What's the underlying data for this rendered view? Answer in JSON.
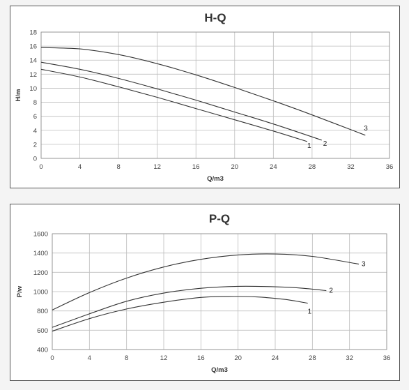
{
  "chart_data": [
    {
      "type": "line",
      "title": "H-Q",
      "xlabel": "Q/m3",
      "ylabel": "H/m",
      "xlim": [
        0,
        36
      ],
      "ylim": [
        0,
        18
      ],
      "xticks": [
        0,
        4,
        8,
        12,
        16,
        20,
        24,
        28,
        32,
        36
      ],
      "yticks": [
        0,
        2,
        4,
        6,
        8,
        10,
        12,
        14,
        16,
        18
      ],
      "grid": true,
      "series": [
        {
          "name": "1",
          "x": [
            0,
            4,
            8,
            12,
            16,
            20,
            24,
            27.5
          ],
          "y": [
            12.7,
            11.6,
            10.2,
            8.7,
            7.1,
            5.5,
            3.9,
            2.4
          ]
        },
        {
          "name": "2",
          "x": [
            0,
            4,
            8,
            12,
            16,
            20,
            24,
            29
          ],
          "y": [
            13.7,
            12.7,
            11.4,
            9.9,
            8.3,
            6.6,
            4.9,
            2.6
          ]
        },
        {
          "name": "3",
          "x": [
            0,
            4,
            8,
            12,
            16,
            20,
            24,
            28,
            33.5
          ],
          "y": [
            15.8,
            15.6,
            14.8,
            13.5,
            11.9,
            10.1,
            8.2,
            6.2,
            3.3
          ]
        }
      ]
    },
    {
      "type": "line",
      "title": "P-Q",
      "xlabel": "Q/m3",
      "ylabel": "P/w",
      "xlim": [
        0,
        36
      ],
      "ylim": [
        400,
        1600
      ],
      "xticks": [
        0,
        4,
        8,
        12,
        16,
        20,
        24,
        28,
        32,
        36
      ],
      "yticks": [
        400,
        600,
        800,
        1000,
        1200,
        1400,
        1600
      ],
      "grid": true,
      "series": [
        {
          "name": "1",
          "x": [
            0,
            4,
            8,
            12,
            16,
            19,
            22,
            25,
            27.5
          ],
          "y": [
            590,
            720,
            820,
            890,
            940,
            950,
            945,
            920,
            880
          ]
        },
        {
          "name": "2",
          "x": [
            0,
            4,
            8,
            12,
            16,
            20,
            24,
            27,
            29.5
          ],
          "y": [
            630,
            770,
            900,
            985,
            1035,
            1055,
            1050,
            1035,
            1010
          ]
        },
        {
          "name": "3",
          "x": [
            0,
            4,
            8,
            12,
            16,
            20,
            24,
            28,
            33
          ],
          "y": [
            810,
            990,
            1140,
            1255,
            1335,
            1380,
            1390,
            1365,
            1285
          ]
        }
      ]
    }
  ]
}
